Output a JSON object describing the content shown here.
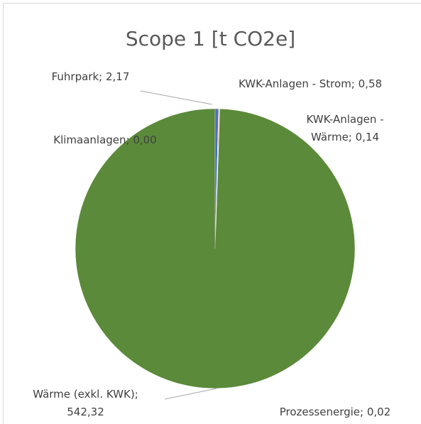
{
  "chart_data": {
    "type": "pie",
    "title": "Scope 1 [t CO2e]",
    "values": [
      2.17,
      0.58,
      0.14,
      0.02,
      542.32,
      0.0
    ],
    "value_labels": [
      "Fuhrpark; 2,17",
      "KWK-Anlagen - Strom; 0,58",
      "KWK-Anlagen - Wärme; 0,14",
      "Prozessenergie; 0,02",
      "Wärme (exkl. KWK); 542,32",
      "Klimaanlagen; 0,00"
    ],
    "colors": [
      "#4472c4",
      "#ed7d31",
      "#a5a5a5",
      "#ffc000",
      "#5b8a3a",
      "#264478"
    ]
  }
}
